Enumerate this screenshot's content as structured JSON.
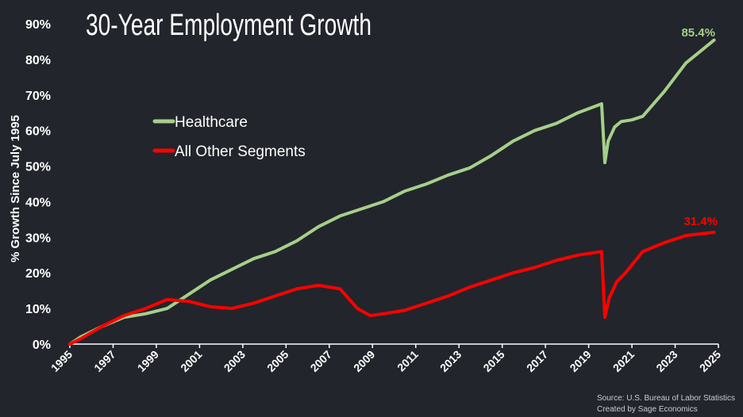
{
  "chart_data": {
    "type": "line",
    "title": "30-Year Employment Growth",
    "ylabel": "% Growth Since July 1995",
    "xlabel": "",
    "xlim": [
      1995.5,
      2025.5
    ],
    "ylim": [
      0,
      90
    ],
    "y_ticks": [
      0,
      10,
      20,
      30,
      40,
      50,
      60,
      70,
      80,
      90
    ],
    "y_tick_labels": [
      "0%",
      "10%",
      "20%",
      "30%",
      "40%",
      "50%",
      "60%",
      "70%",
      "80%",
      "90%"
    ],
    "x_ticks": [
      1995,
      1997,
      1999,
      2001,
      2003,
      2005,
      2007,
      2009,
      2011,
      2013,
      2015,
      2017,
      2019,
      2021,
      2023,
      2025
    ],
    "x_tick_labels": [
      "1995",
      "1997",
      "1999",
      "2001",
      "2003",
      "2005",
      "2007",
      "2009",
      "2011",
      "2013",
      "2015",
      "2017",
      "2019",
      "2021",
      "2023",
      "2025"
    ],
    "grid": false,
    "legend_position": "upper-left",
    "series": [
      {
        "name": "Healthcare",
        "color": "#a6cf8a",
        "end_label": "85.4%",
        "x": [
          1995.5,
          1996,
          1997,
          1998,
          1999,
          2000,
          2001,
          2002,
          2003,
          2004,
          2005,
          2006,
          2007,
          2008,
          2009,
          2010,
          2011,
          2012,
          2013,
          2014,
          2015,
          2016,
          2017,
          2018,
          2019,
          2020.1,
          2020.25,
          2020.4,
          2020.7,
          2021,
          2021.5,
          2022,
          2023,
          2024,
          2025.3
        ],
        "values": [
          0,
          2,
          5,
          7.5,
          8.5,
          10,
          14,
          18,
          21,
          24,
          26,
          29,
          33,
          36,
          38,
          40,
          43,
          45,
          47.5,
          49.5,
          53,
          57,
          60,
          62,
          65,
          67.5,
          51,
          57,
          61,
          62.5,
          63,
          64,
          71,
          79,
          85.4
        ]
      },
      {
        "name": "All Other Segments",
        "color": "#ff0000",
        "end_label": "31.4%",
        "x": [
          1995.5,
          1996,
          1997,
          1998,
          1999,
          2000,
          2001,
          2002,
          2003,
          2004,
          2005,
          2006,
          2007,
          2008,
          2008.8,
          2009.4,
          2010,
          2011,
          2012,
          2013,
          2014,
          2015,
          2016,
          2017,
          2018,
          2019,
          2020.1,
          2020.25,
          2020.45,
          2020.8,
          2021.2,
          2022,
          2023,
          2024,
          2025.3
        ],
        "values": [
          0,
          1.5,
          5,
          8,
          10,
          12.5,
          12,
          10.5,
          10,
          11.5,
          13.5,
          15.5,
          16.5,
          15.5,
          10,
          8,
          8.5,
          9.5,
          11.5,
          13.5,
          16,
          18,
          20,
          21.5,
          23.5,
          25,
          26,
          7.5,
          13,
          17.5,
          20,
          26,
          28.5,
          30.5,
          31.4
        ]
      }
    ],
    "annotations": [
      "Source: U.S. Bureau of Labor Statistics",
      "Created by Sage Economics"
    ]
  }
}
